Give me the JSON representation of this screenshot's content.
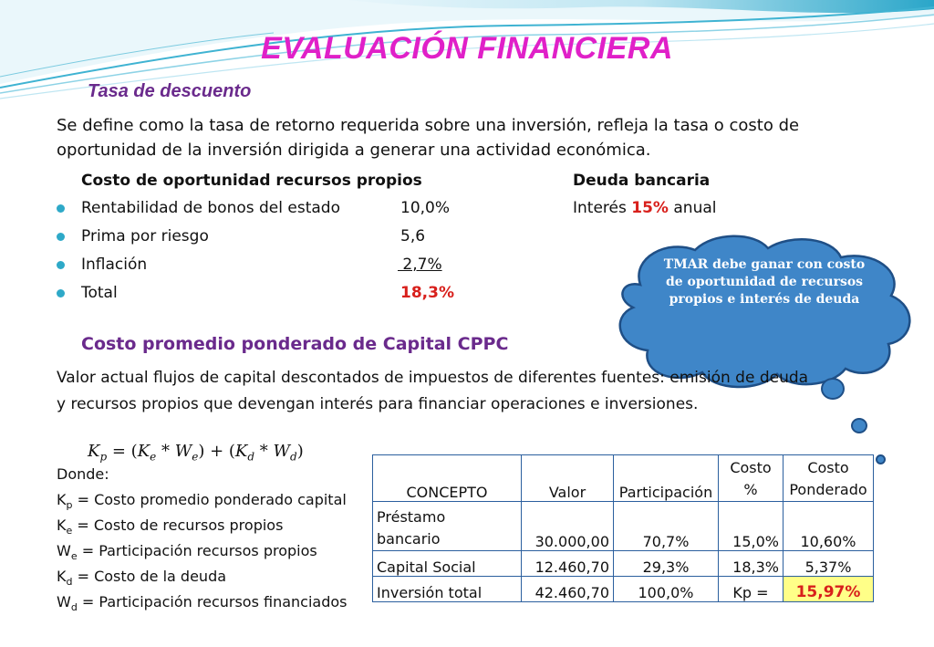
{
  "slide": {
    "title": "EVALUACIÓN FINANCIERA",
    "subtitle": "Tasa de descuento",
    "intro_line1": "Se define como la tasa de retorno requerida sobre una inversión, refleja la tasa o costo de",
    "intro_line2": "oportunidad de la inversión dirigida a generar una actividad económica.",
    "own_resources": {
      "heading": "Costo de oportunidad recursos propios",
      "items": [
        {
          "label": "Rentabilidad de bonos del estado",
          "value": "10,0%"
        },
        {
          "label": "Prima por riesgo",
          "value": "5,6"
        },
        {
          "label": "Inflación",
          "value": " 2,7%"
        },
        {
          "label": "Total",
          "value": "18,3%"
        }
      ]
    },
    "bank_debt": {
      "heading": "Deuda bancaria",
      "interest_prefix": "Interés",
      "interest_rate": "15%",
      "interest_suffix": "anual"
    },
    "cloud_note": "TMAR debe ganar con costo de oportunidad de recursos propios e interés de deuda",
    "cppc": {
      "heading": "Costo promedio ponderado de Capital CPPC",
      "line1": "Valor actual flujos de capital descontados de impuestos de diferentes fuentes: emisión de deuda",
      "line2": "y recursos propios que devengan interés para financiar operaciones e inversiones."
    },
    "formula": {
      "lhs": "K",
      "lhs_sub": "p",
      "eq": " = (",
      "t1": "K",
      "t1_sub": "e",
      "op1": " * ",
      "t2": "W",
      "t2_sub": "e",
      "mid": ") + (",
      "t3": "K",
      "t3_sub": "d",
      "op2": " * ",
      "t4": "W",
      "t4_sub": "d",
      "end": ")"
    },
    "definitions": {
      "intro": "Donde:",
      "items": [
        {
          "sym": "K",
          "sub": "p",
          "text": " = Costo promedio ponderado capital"
        },
        {
          "sym": "K",
          "sub": "e",
          "text": " = Costo de recursos propios"
        },
        {
          "sym": "W",
          "sub": "e",
          "text": " = Participación recursos propios"
        },
        {
          "sym": "K",
          "sub": "d",
          "text": " = Costo de la deuda"
        },
        {
          "sym": "W",
          "sub": "d",
          "text": " = Participación recursos financiados"
        }
      ]
    },
    "table": {
      "headers": {
        "concept": "CONCEPTO",
        "value": "Valor",
        "share": "Participación",
        "cost_line1": "Costo",
        "cost_line2": "%",
        "weighted_line1": "Costo",
        "weighted_line2": "Ponderado"
      },
      "rows": [
        {
          "concept_line1": "Préstamo",
          "concept_line2": "bancario",
          "value": "30.000,00",
          "share": "70,7%",
          "cost": "15,0%",
          "weighted": "10,60%"
        },
        {
          "concept_line1": "Capital Social",
          "concept_line2": "",
          "value": "12.460,70",
          "share": "29,3%",
          "cost": "18,3%",
          "weighted": "5,37%"
        },
        {
          "concept_line1": "Inversión total",
          "concept_line2": "",
          "value": "42.460,70",
          "share": "100,0%",
          "cost": "Kp =",
          "weighted": "15,97%"
        }
      ]
    }
  }
}
